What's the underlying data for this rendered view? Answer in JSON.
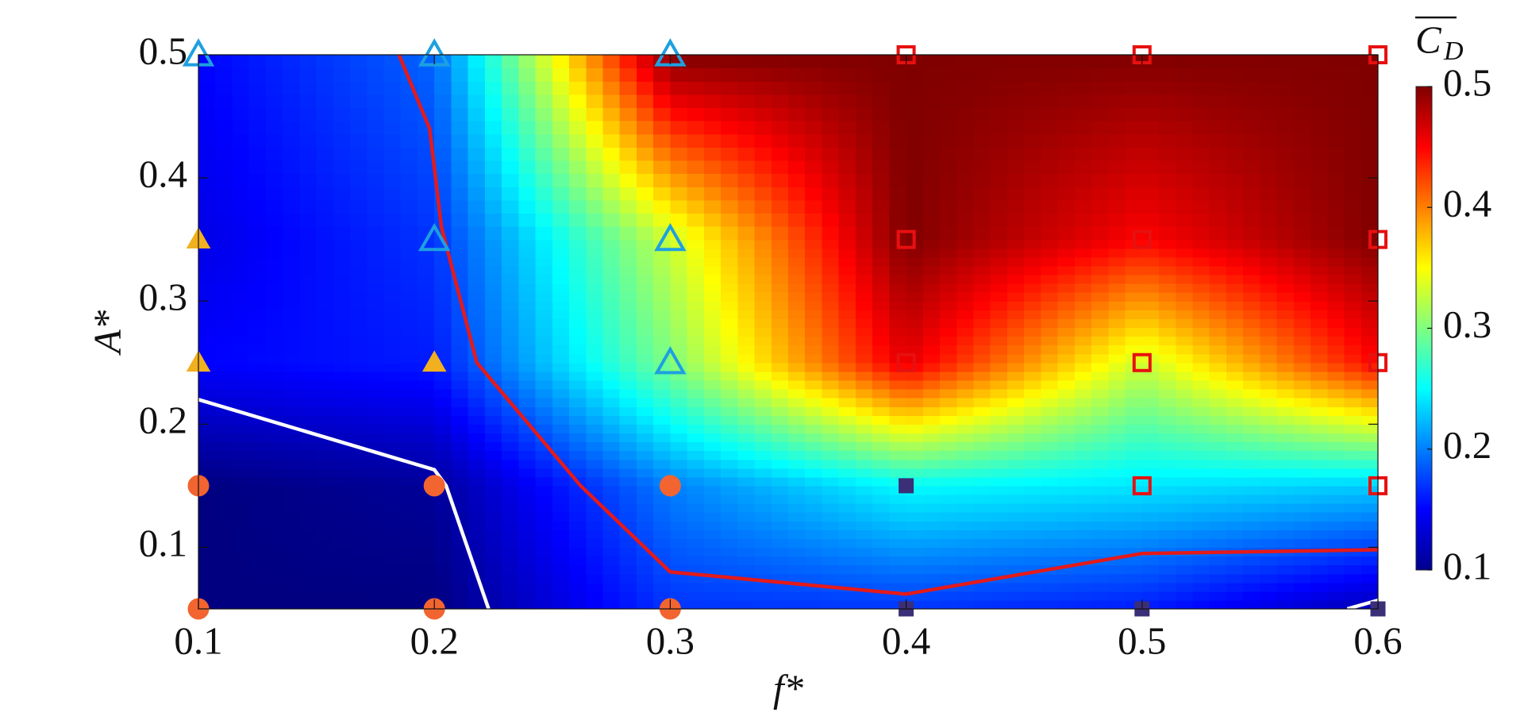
{
  "chart_data": {
    "type": "heatmap",
    "x_label": "f*",
    "y_label": "A*",
    "colorbar_label": {
      "main": "C",
      "sub": "D"
    },
    "x": [
      0.1,
      0.2,
      0.3,
      0.4,
      0.5,
      0.6
    ],
    "y": [
      0.05,
      0.15,
      0.25,
      0.35,
      0.5
    ],
    "z": [
      [
        0.1,
        0.1,
        0.17,
        0.17,
        0.16,
        0.12
      ],
      [
        0.1,
        0.11,
        0.2,
        0.25,
        0.24,
        0.23
      ],
      [
        0.15,
        0.16,
        0.3,
        0.46,
        0.33,
        0.45
      ],
      [
        0.14,
        0.17,
        0.33,
        0.5,
        0.45,
        0.5
      ],
      [
        0.15,
        0.19,
        0.5,
        0.5,
        0.5,
        0.5
      ]
    ],
    "colormap": "jet",
    "clim": [
      0.1,
      0.5
    ],
    "cticks": [
      0.1,
      0.2,
      0.3,
      0.4,
      0.5
    ],
    "xlim": [
      0.1,
      0.6
    ],
    "ylim": [
      0.05,
      0.5
    ],
    "xticks": [
      0.1,
      0.2,
      0.3,
      0.4,
      0.5,
      0.6
    ],
    "yticks": [
      0.1,
      0.2,
      0.3,
      0.4,
      0.5
    ],
    "lines": [
      {
        "color": "#e41a1a",
        "x": [
          0.185,
          0.198,
          0.203,
          0.218,
          0.262,
          0.3,
          0.4,
          0.5,
          0.6
        ],
        "y": [
          0.5,
          0.44,
          0.36,
          0.25,
          0.15,
          0.08,
          0.062,
          0.095,
          0.098
        ]
      },
      {
        "color": "#ffffff",
        "x": [
          0.1,
          0.2,
          0.205,
          0.223,
          null,
          0.587,
          0.6
        ],
        "y": [
          0.22,
          0.163,
          0.15,
          0.05,
          null,
          0.05,
          0.057
        ]
      }
    ],
    "series": [
      {
        "marker": "triangle",
        "filled": false,
        "color": "#1ea0e0",
        "x": [
          0.1,
          0.2,
          0.3,
          0.2,
          0.3,
          0.3
        ],
        "y": [
          0.5,
          0.5,
          0.5,
          0.35,
          0.35,
          0.25
        ]
      },
      {
        "marker": "triangle",
        "filled": true,
        "color": "#f0b020",
        "x": [
          0.1,
          0.1,
          0.2
        ],
        "y": [
          0.35,
          0.25,
          0.25
        ]
      },
      {
        "marker": "circle",
        "filled": true,
        "color": "#f26430",
        "x": [
          0.1,
          0.2,
          0.3,
          0.1,
          0.2,
          0.3
        ],
        "y": [
          0.15,
          0.15,
          0.15,
          0.05,
          0.05,
          0.05
        ]
      },
      {
        "marker": "square",
        "filled": true,
        "color": "#3b2f78",
        "x": [
          0.4,
          0.4,
          0.5,
          0.6
        ],
        "y": [
          0.15,
          0.05,
          0.05,
          0.05
        ]
      },
      {
        "marker": "square",
        "filled": false,
        "color": "#e81010",
        "x": [
          0.4,
          0.5,
          0.6,
          0.4,
          0.5,
          0.6,
          0.4,
          0.5,
          0.6,
          0.5,
          0.6
        ],
        "y": [
          0.5,
          0.5,
          0.5,
          0.35,
          0.35,
          0.35,
          0.25,
          0.25,
          0.25,
          0.15,
          0.15
        ]
      }
    ]
  }
}
